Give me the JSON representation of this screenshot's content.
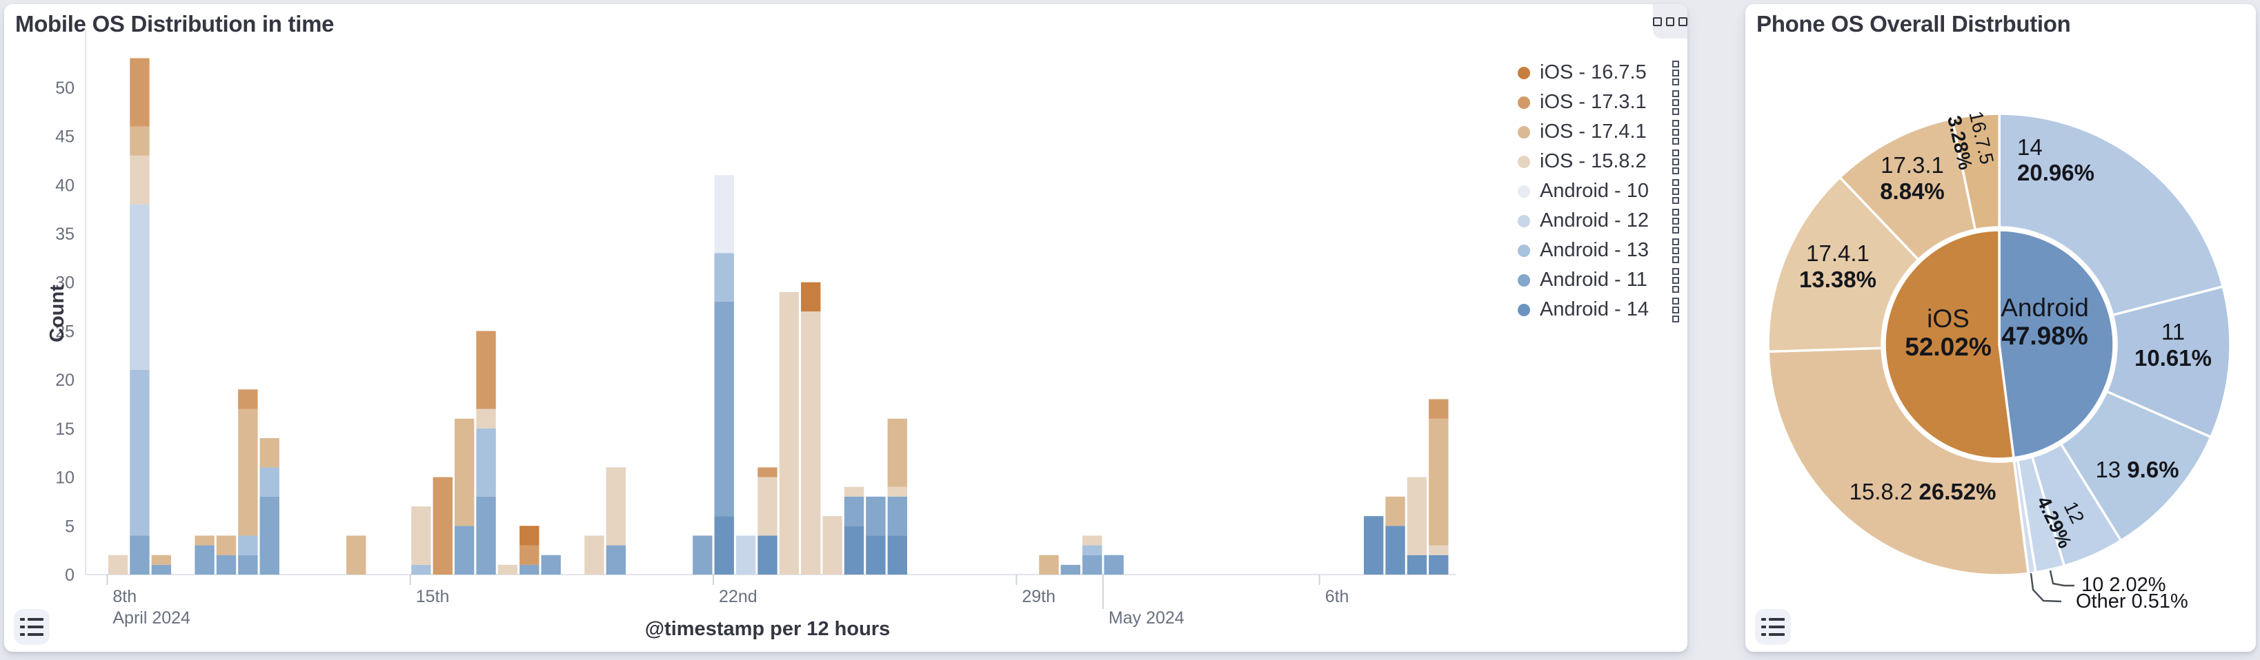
{
  "left_panel": {
    "title": "Mobile OS Distribution in time",
    "x_axis_title": "@timestamp per 12 hours",
    "y_axis_title": "Count",
    "menu_icon": "ellipsis-squares",
    "legend_toggle_icon": "list"
  },
  "right_panel": {
    "title": "Phone OS Overall Distrbution",
    "legend_toggle_icon": "list"
  },
  "legend": {
    "items": [
      {
        "label": "iOS - 16.7.5",
        "color": "#c87e3e"
      },
      {
        "label": "iOS - 17.3.1",
        "color": "#d29a66"
      },
      {
        "label": "iOS - 17.4.1",
        "color": "#dbb992"
      },
      {
        "label": "iOS - 15.8.2",
        "color": "#e6d4c1"
      },
      {
        "label": "Android - 10",
        "color": "#e7ecf4"
      },
      {
        "label": "Android - 12",
        "color": "#c7d6e9"
      },
      {
        "label": "Android - 13",
        "color": "#a8c1dc"
      },
      {
        "label": "Android - 11",
        "color": "#84a7cb"
      },
      {
        "label": "Android - 14",
        "color": "#6b93bf"
      }
    ]
  },
  "chart_data": [
    {
      "type": "bar",
      "stacked": true,
      "title": "Mobile OS Distribution in time",
      "xlabel": "@timestamp per 12 hours",
      "ylabel": "Count",
      "ylim": [
        0,
        56
      ],
      "y_ticks": [
        0,
        5,
        10,
        15,
        20,
        25,
        30,
        35,
        40,
        45,
        50
      ],
      "grid": false,
      "bucket_hours": 12,
      "x_domain_buckets": 63,
      "x_ticks": [
        {
          "bucket": 1,
          "row1": "8th",
          "row2": "April 2024"
        },
        {
          "bucket": 15,
          "row1": "15th"
        },
        {
          "bucket": 29,
          "row1": "22nd"
        },
        {
          "bucket": 43,
          "row1": "29th"
        },
        {
          "bucket": 47,
          "row2": "May 2024",
          "tall": true
        },
        {
          "bucket": 57,
          "row1": "6th"
        }
      ],
      "stack_order_bottom_to_top": [
        "Android - 14",
        "Android - 11",
        "Android - 13",
        "Android - 12",
        "Android - 10",
        "iOS - 15.8.2",
        "iOS - 17.4.1",
        "iOS - 17.3.1",
        "iOS - 16.7.5"
      ],
      "bars": [
        {
          "bucket": 1,
          "segments": {
            "iOS - 15.8.2": 2
          }
        },
        {
          "bucket": 2,
          "segments": {
            "Android - 11": 4,
            "Android - 13": 17,
            "Android - 12": 17,
            "iOS - 15.8.2": 5,
            "iOS - 17.4.1": 3,
            "iOS - 17.3.1": 7
          }
        },
        {
          "bucket": 3,
          "segments": {
            "Android - 11": 1,
            "iOS - 17.4.1": 1
          }
        },
        {
          "bucket": 5,
          "segments": {
            "Android - 11": 3,
            "iOS - 17.4.1": 1
          }
        },
        {
          "bucket": 6,
          "segments": {
            "Android - 11": 2,
            "iOS - 17.4.1": 2
          }
        },
        {
          "bucket": 7,
          "segments": {
            "Android - 11": 2,
            "Android - 13": 2,
            "iOS - 17.4.1": 13,
            "iOS - 17.3.1": 2
          }
        },
        {
          "bucket": 8,
          "segments": {
            "Android - 11": 8,
            "Android - 13": 3,
            "iOS - 17.4.1": 3
          }
        },
        {
          "bucket": 12,
          "segments": {
            "iOS - 17.4.1": 4
          }
        },
        {
          "bucket": 15,
          "segments": {
            "Android - 13": 1,
            "iOS - 15.8.2": 6
          }
        },
        {
          "bucket": 16,
          "segments": {
            "iOS - 17.3.1": 10
          }
        },
        {
          "bucket": 17,
          "segments": {
            "Android - 11": 5,
            "iOS - 17.4.1": 11
          }
        },
        {
          "bucket": 18,
          "segments": {
            "Android - 11": 8,
            "Android - 13": 7,
            "iOS - 15.8.2": 2,
            "iOS - 17.3.1": 8
          }
        },
        {
          "bucket": 19,
          "segments": {
            "iOS - 15.8.2": 1
          }
        },
        {
          "bucket": 20,
          "segments": {
            "Android - 11": 1,
            "iOS - 17.3.1": 2,
            "iOS - 16.7.5": 2
          }
        },
        {
          "bucket": 21,
          "segments": {
            "Android - 11": 2
          }
        },
        {
          "bucket": 23,
          "segments": {
            "iOS - 15.8.2": 4
          }
        },
        {
          "bucket": 24,
          "segments": {
            "Android - 11": 3,
            "iOS - 15.8.2": 8
          }
        },
        {
          "bucket": 28,
          "segments": {
            "Android - 11": 4
          }
        },
        {
          "bucket": 29,
          "segments": {
            "Android - 14": 6,
            "Android - 11": 22,
            "Android - 13": 5,
            "Android - 10": 8
          }
        },
        {
          "bucket": 30,
          "segments": {
            "Android - 12": 4
          }
        },
        {
          "bucket": 31,
          "segments": {
            "Android - 14": 4,
            "iOS - 15.8.2": 6,
            "iOS - 17.3.1": 1
          }
        },
        {
          "bucket": 32,
          "segments": {
            "iOS - 15.8.2": 29
          }
        },
        {
          "bucket": 33,
          "segments": {
            "iOS - 15.8.2": 27,
            "iOS - 16.7.5": 3
          }
        },
        {
          "bucket": 34,
          "segments": {
            "iOS - 15.8.2": 6
          }
        },
        {
          "bucket": 35,
          "segments": {
            "Android - 14": 5,
            "Android - 11": 3,
            "iOS - 15.8.2": 1
          }
        },
        {
          "bucket": 36,
          "segments": {
            "Android - 14": 4,
            "Android - 11": 4
          }
        },
        {
          "bucket": 37,
          "segments": {
            "Android - 14": 4,
            "Android - 11": 4,
            "iOS - 15.8.2": 1,
            "iOS - 17.4.1": 7
          }
        },
        {
          "bucket": 44,
          "segments": {
            "iOS - 17.4.1": 2
          }
        },
        {
          "bucket": 45,
          "segments": {
            "Android - 11": 1
          }
        },
        {
          "bucket": 46,
          "segments": {
            "Android - 11": 2,
            "Android - 13": 1,
            "iOS - 15.8.2": 1
          }
        },
        {
          "bucket": 47,
          "segments": {
            "Android - 11": 2
          }
        },
        {
          "bucket": 59,
          "segments": {
            "Android - 14": 6
          }
        },
        {
          "bucket": 60,
          "segments": {
            "Android - 14": 5,
            "iOS - 17.4.1": 3
          }
        },
        {
          "bucket": 61,
          "segments": {
            "Android - 14": 2,
            "iOS - 15.8.2": 8
          }
        },
        {
          "bucket": 62,
          "segments": {
            "Android - 14": 2,
            "iOS - 15.8.2": 1,
            "iOS - 17.4.1": 13,
            "iOS - 17.3.1": 2
          }
        }
      ]
    },
    {
      "type": "pie",
      "subtype": "sunburst-donut",
      "title": "Phone OS Overall Distrbution",
      "direction": "clockwise-from-top",
      "inner_ring": [
        {
          "name": "Android",
          "pct": 47.98,
          "color": "#7094c0"
        },
        {
          "name": "iOS",
          "pct": 52.02,
          "color": "#c8853f"
        }
      ],
      "outer_ring": [
        {
          "parent": "Android",
          "name": "14",
          "pct": 20.96,
          "color": "#b5c9e3"
        },
        {
          "parent": "Android",
          "name": "11",
          "pct": 10.61,
          "color": "#aec4e0"
        },
        {
          "parent": "Android",
          "name": "13",
          "pct": 9.6,
          "color": "#b4cae3"
        },
        {
          "parent": "Android",
          "name": "12",
          "pct": 4.29,
          "color": "#bed1e8"
        },
        {
          "parent": "Android",
          "name": "10",
          "pct": 2.02,
          "color": "#c6d7eb"
        },
        {
          "parent": "Android",
          "name": "Other",
          "pct": 0.51,
          "color": "#d0dcee"
        },
        {
          "parent": "iOS",
          "name": "15.8.2",
          "pct": 26.52,
          "color": "#e2c29d"
        },
        {
          "parent": "iOS",
          "name": "17.4.1",
          "pct": 13.38,
          "color": "#e6cba8"
        },
        {
          "parent": "iOS",
          "name": "17.3.1",
          "pct": 8.84,
          "color": "#e1c098"
        },
        {
          "parent": "iOS",
          "name": "16.7.5",
          "pct": 3.28,
          "color": "#deb787"
        }
      ],
      "labels": [
        {
          "id": "inner-ios",
          "line1": "iOS",
          "line2": "52.02%"
        },
        {
          "id": "inner-android",
          "line1": "Android",
          "line2": "47.98%"
        },
        {
          "id": "s14",
          "line1": "14",
          "line2": "20.96%"
        },
        {
          "id": "s1731",
          "line1": "17.3.1",
          "line2": "8.84%"
        },
        {
          "id": "s1675",
          "line1": "16.7.5",
          "line2": "3.28%"
        },
        {
          "id": "s1741",
          "line1": "17.4.1",
          "line2": "13.38%"
        },
        {
          "id": "s1582",
          "line1": "15.8.2",
          "line2": "26.52%"
        },
        {
          "id": "s13",
          "line1": "13",
          "line2": "9.6%"
        },
        {
          "id": "s12",
          "line1": "12",
          "line2": "4.29%"
        },
        {
          "id": "s11",
          "line1": "11",
          "line2": "10.61%"
        },
        {
          "id": "s10",
          "line1": "10",
          "line2": "2.02%"
        },
        {
          "id": "sother",
          "line1": "Other",
          "line2": "0.51%"
        }
      ]
    }
  ]
}
